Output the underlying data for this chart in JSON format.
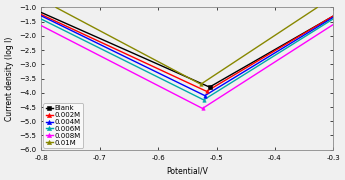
{
  "title": "",
  "xlabel": "Potential/V",
  "ylabel": "Current density (log I)",
  "xlim": [
    -0.8,
    -0.3
  ],
  "ylim": [
    -6.0,
    -1.0
  ],
  "xticks": [
    -0.8,
    -0.7,
    -0.6,
    -0.5,
    -0.4,
    -0.3
  ],
  "yticks": [
    -6.0,
    -5.5,
    -5.0,
    -4.5,
    -4.0,
    -3.5,
    -3.0,
    -2.5,
    -2.0,
    -1.5,
    -1.0
  ],
  "series": [
    {
      "label": "Blank",
      "color": "#000000",
      "marker": "s",
      "Ecorr": -0.512,
      "icorr": -3.8,
      "ba": 0.085,
      "bc": 0.11
    },
    {
      "label": "0.002M",
      "color": "#ff0000",
      "marker": "^",
      "Ecorr": -0.517,
      "icorr": -3.95,
      "ba": 0.082,
      "bc": 0.105
    },
    {
      "label": "0.004M",
      "color": "#0000ff",
      "marker": "^",
      "Ecorr": -0.52,
      "icorr": -4.1,
      "ba": 0.08,
      "bc": 0.1
    },
    {
      "label": "0.006M",
      "color": "#00aaaa",
      "marker": "^",
      "Ecorr": -0.522,
      "icorr": -4.25,
      "ba": 0.078,
      "bc": 0.098
    },
    {
      "label": "0.008M",
      "color": "#ff00ff",
      "marker": "^",
      "Ecorr": -0.524,
      "icorr": -4.55,
      "ba": 0.076,
      "bc": 0.095
    },
    {
      "label": "0.01M",
      "color": "#888800",
      "marker": "^",
      "Ecorr": -0.527,
      "icorr": -3.7,
      "ba": 0.074,
      "bc": 0.092
    }
  ],
  "background_color": "#f0f0f0",
  "legend_loc": "lower left",
  "font_size": 5.5,
  "tick_font_size": 5.0
}
